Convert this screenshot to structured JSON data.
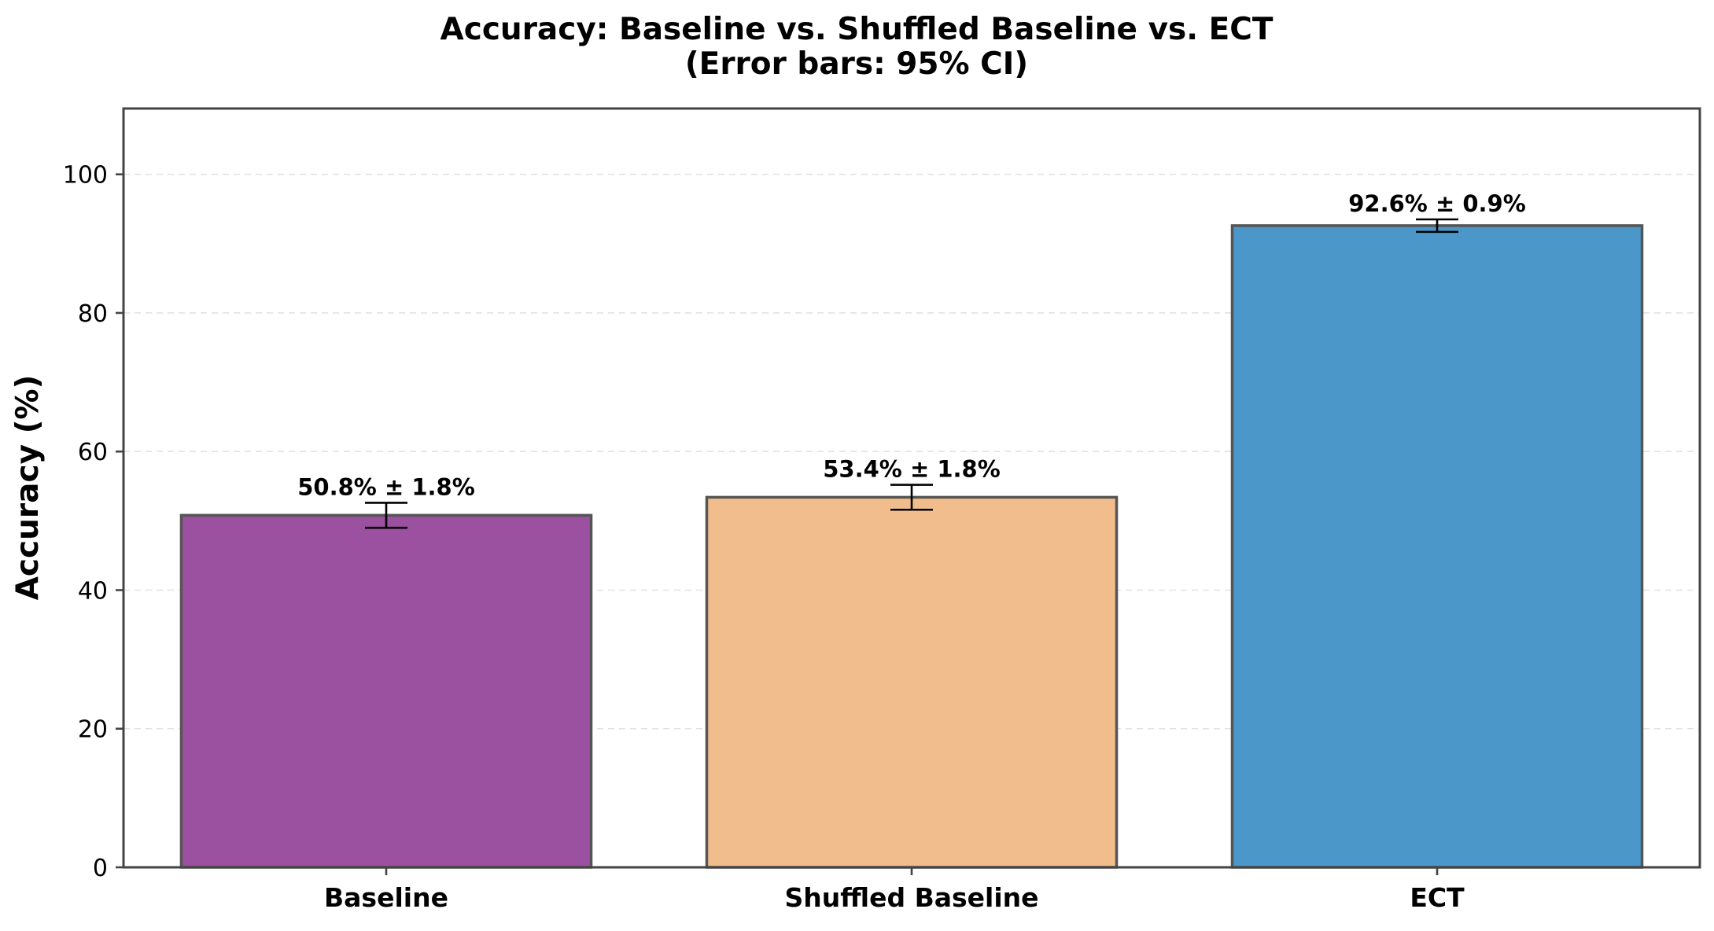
{
  "chart_data": {
    "type": "bar",
    "title": [
      "Accuracy: Baseline vs. Shuffled Baseline vs. ECT",
      "(Error bars: 95% CI)"
    ],
    "xlabel": "",
    "ylabel": "Accuracy (%)",
    "ylim": [
      0,
      109.5
    ],
    "yticks": [
      0,
      20,
      40,
      60,
      80,
      100
    ],
    "grid": "y-dashed",
    "categories": [
      "Baseline",
      "Shuffled Baseline",
      "ECT"
    ],
    "values": [
      50.8,
      53.4,
      92.6
    ],
    "errors": [
      1.8,
      1.8,
      0.9
    ],
    "labels": [
      "50.8% ± 1.8%",
      "53.4% ± 1.8%",
      "92.6% ± 0.9%"
    ],
    "colors": [
      "#9b51a0",
      "#f2bd8c",
      "#4b97c9"
    ],
    "edge_color": "#555555",
    "axis_color": "#444444",
    "grid_color": "#e2e2e2"
  }
}
